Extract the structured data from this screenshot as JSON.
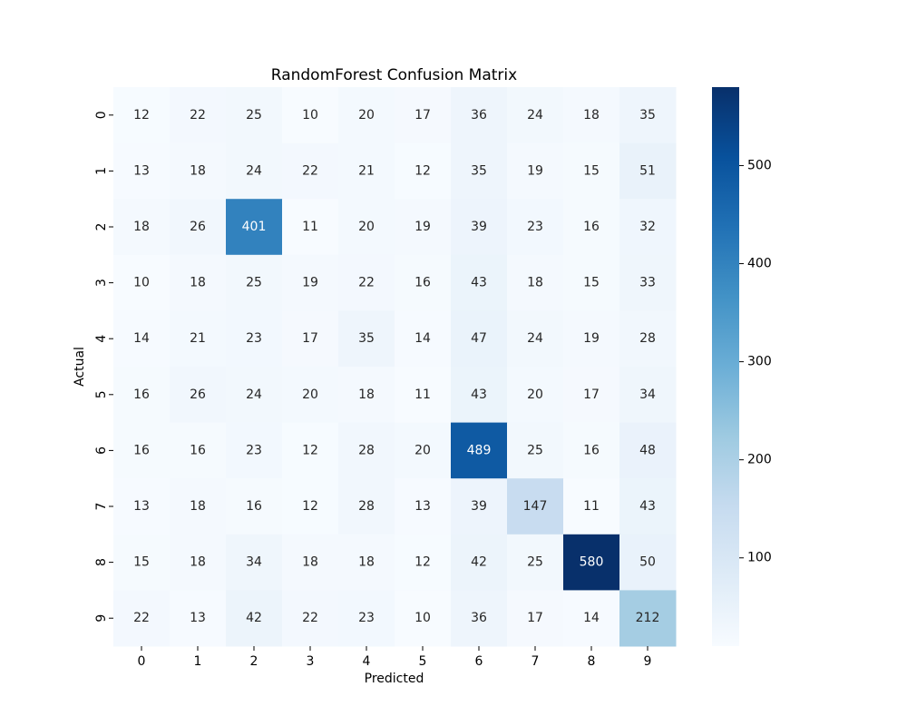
{
  "chart_data": {
    "type": "heatmap",
    "title": "RandomForest Confusion Matrix",
    "xlabel": "Predicted",
    "ylabel": "Actual",
    "x_categories": [
      "0",
      "1",
      "2",
      "3",
      "4",
      "5",
      "6",
      "7",
      "8",
      "9"
    ],
    "y_categories": [
      "0",
      "1",
      "2",
      "3",
      "4",
      "5",
      "6",
      "7",
      "8",
      "9"
    ],
    "matrix": [
      [
        12,
        22,
        25,
        10,
        20,
        17,
        36,
        24,
        18,
        35
      ],
      [
        13,
        18,
        24,
        22,
        21,
        12,
        35,
        19,
        15,
        51
      ],
      [
        18,
        26,
        401,
        11,
        20,
        19,
        39,
        23,
        16,
        32
      ],
      [
        10,
        18,
        25,
        19,
        22,
        16,
        43,
        18,
        15,
        33
      ],
      [
        14,
        21,
        23,
        17,
        35,
        14,
        47,
        24,
        19,
        28
      ],
      [
        16,
        26,
        24,
        20,
        18,
        11,
        43,
        20,
        17,
        34
      ],
      [
        16,
        16,
        23,
        12,
        28,
        20,
        489,
        25,
        16,
        48
      ],
      [
        13,
        18,
        16,
        12,
        28,
        13,
        39,
        147,
        11,
        43
      ],
      [
        15,
        18,
        34,
        18,
        18,
        12,
        42,
        25,
        580,
        50
      ],
      [
        22,
        13,
        42,
        22,
        23,
        10,
        36,
        17,
        14,
        212
      ]
    ],
    "colormap": "Blues",
    "colorbar": {
      "min": 10,
      "max": 580,
      "ticks": [
        100,
        200,
        300,
        400,
        500
      ]
    },
    "grid": false,
    "legend": "colorbar-right"
  }
}
